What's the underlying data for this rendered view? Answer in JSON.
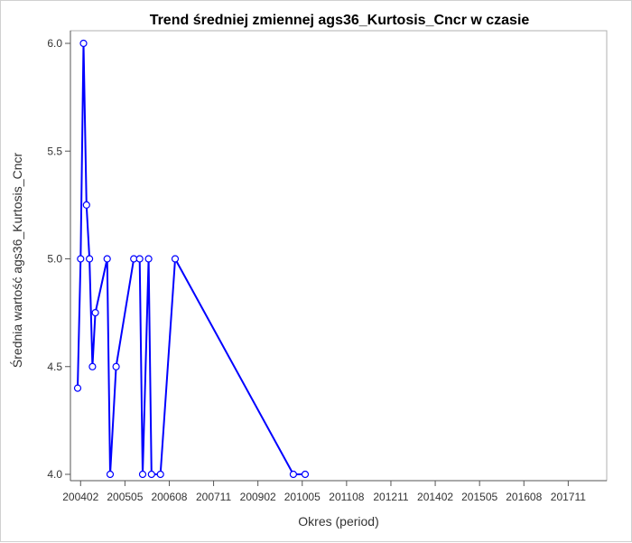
{
  "chart_data": {
    "type": "line",
    "title": "Trend średniej zmiennej ags36_Kurtosis_Cncr w czasie",
    "xlabel": "Okres (period)",
    "ylabel": "Średnia wartość ags36_Kurtosis_Cncr",
    "x_tick_labels": [
      "200402",
      "200505",
      "200608",
      "200711",
      "200902",
      "201005",
      "201108",
      "201211",
      "201402",
      "201505",
      "201608",
      "201711"
    ],
    "xlim": [
      "200401",
      "201805"
    ],
    "ylim": [
      4.0,
      6.0
    ],
    "y_ticks": [
      4.0,
      4.5,
      5.0,
      5.5,
      6.0
    ],
    "y_tick_labels": [
      "4.0",
      "4.5",
      "5.0",
      "5.5",
      "6.0"
    ],
    "grid": false,
    "color": "#0000ff",
    "series": [
      {
        "x": [
          "200401",
          "200402",
          "200403",
          "200404",
          "200405",
          "200406",
          "200407",
          "200411",
          "200412",
          "200502",
          "200508",
          "200510",
          "200511",
          "200601",
          "200602",
          "200605",
          "200610",
          "201002",
          "201006"
        ],
        "y": [
          4.4,
          5.0,
          6.0,
          5.25,
          5.0,
          4.5,
          4.75,
          5.0,
          4.0,
          4.5,
          5.0,
          5.0,
          4.0,
          5.0,
          4.0,
          4.0,
          5.0,
          4.0,
          4.0
        ]
      }
    ]
  }
}
